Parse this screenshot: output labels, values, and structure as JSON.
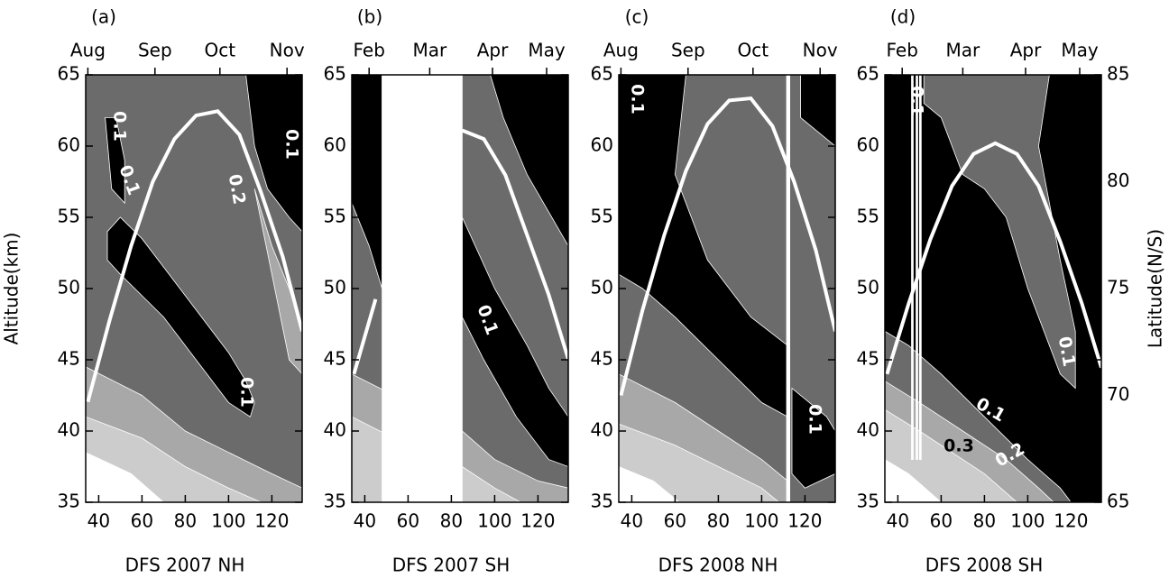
{
  "chart_data": [
    {
      "type": "contour",
      "panel_label": "(a)",
      "xlabel": "DFS 2007 NH",
      "ylabel": "Altitude(km)",
      "xlim": [
        34,
        134
      ],
      "xticks": [
        40,
        60,
        80,
        100,
        120
      ],
      "ylim": [
        35,
        65
      ],
      "yticks": [
        35,
        40,
        45,
        50,
        55,
        60,
        65
      ],
      "top_ticks": [
        {
          "value": 35,
          "label": "Aug"
        },
        {
          "value": 66,
          "label": "Sep"
        },
        {
          "value": 96,
          "label": "Oct"
        },
        {
          "value": 127,
          "label": "Nov"
        }
      ],
      "background": "#6b6b6b",
      "regions": [
        {
          "color": "#000000",
          "x": [
            108,
            112,
            118,
            128,
            134,
            134
          ],
          "y": [
            65,
            60,
            57,
            55,
            54,
            65
          ]
        },
        {
          "color": "#000000",
          "x": [
            43,
            46,
            52,
            52,
            48
          ],
          "y": [
            62,
            57,
            56,
            59,
            62
          ]
        },
        {
          "color": "#000000",
          "x": [
            44,
            50,
            60,
            70,
            80,
            90,
            100,
            108,
            112,
            110,
            100,
            90,
            80,
            70,
            60,
            50,
            44
          ],
          "y": [
            54,
            55,
            53.5,
            51.5,
            49.5,
            47.5,
            45.5,
            43.5,
            42,
            41,
            42,
            44,
            46,
            48,
            49.5,
            51,
            52
          ]
        },
        {
          "color": "#a8a8a8",
          "x": [
            112,
            120,
            128,
            134,
            134,
            128,
            120
          ],
          "y": [
            57,
            53,
            50,
            47,
            44,
            45,
            51
          ]
        },
        {
          "color": "#a8a8a8",
          "x": [
            34,
            60,
            80,
            100,
            120,
            134,
            134,
            34
          ],
          "y": [
            44.5,
            42.5,
            40,
            38.5,
            37,
            36,
            35,
            35
          ]
        },
        {
          "color": "#cccccc",
          "x": [
            34,
            60,
            80,
            100,
            115,
            34
          ],
          "y": [
            41,
            39.5,
            37.5,
            36,
            35,
            35
          ]
        },
        {
          "color": "#ffffff",
          "x": [
            34,
            55,
            70,
            34
          ],
          "y": [
            38.5,
            37,
            35,
            35
          ]
        }
      ],
      "y2lim": [
        65,
        85
      ],
      "line": {
        "color": "#ffffff",
        "x": [
          35,
          45,
          55,
          65,
          75,
          85,
          95,
          105,
          115,
          125,
          134
        ],
        "values": [
          69.7,
          73.5,
          77,
          80,
          82,
          83.1,
          83.3,
          82.2,
          79.5,
          76.5,
          73
        ]
      },
      "annotations": [
        {
          "text": "0.1",
          "color": "#ffffff"
        },
        {
          "text": "0.1",
          "color": "#ffffff"
        },
        {
          "text": "0.2",
          "color": "#ffffff"
        },
        {
          "text": "0.1",
          "color": "#ffffff"
        },
        {
          "text": "0.1",
          "color": "#ffffff"
        }
      ]
    },
    {
      "type": "contour",
      "panel_label": "(b)",
      "xlabel": "DFS 2007 SH",
      "xlim": [
        34,
        134
      ],
      "xticks": [
        40,
        60,
        80,
        100,
        120
      ],
      "ylim": [
        35,
        65
      ],
      "yticks": [
        35,
        40,
        45,
        50,
        55,
        60,
        65
      ],
      "top_ticks": [
        {
          "value": 42,
          "label": "Feb"
        },
        {
          "value": 70,
          "label": "Mar"
        },
        {
          "value": 99,
          "label": "Apr"
        },
        {
          "value": 124,
          "label": "May"
        }
      ],
      "background": "#6b6b6b",
      "regions": [
        {
          "color": "#000000",
          "x": [
            34,
            48,
            48,
            42,
            34
          ],
          "y": [
            65,
            65,
            50,
            53,
            56
          ]
        },
        {
          "color": "#000000",
          "x": [
            98,
            134,
            134,
            115,
            104
          ],
          "y": [
            65,
            65,
            53,
            58,
            62
          ]
        },
        {
          "color": "#000000",
          "x": [
            85,
            100,
            115,
            125,
            134,
            134,
            125,
            110,
            95,
            85
          ],
          "y": [
            55,
            50,
            46,
            43,
            41,
            37.5,
            38,
            41,
            45,
            48
          ]
        },
        {
          "color": "#a8a8a8",
          "x": [
            34,
            60,
            85,
            100,
            120,
            134,
            134,
            34
          ],
          "y": [
            44,
            42,
            40,
            38,
            36.5,
            36,
            35,
            35
          ]
        },
        {
          "color": "#cccccc",
          "x": [
            34,
            60,
            85,
            100,
            112,
            34
          ],
          "y": [
            41,
            39,
            37.5,
            36,
            35,
            35
          ]
        },
        {
          "color": "#ffffff",
          "x": [
            48,
            85,
            85,
            48
          ],
          "y": [
            65,
            65,
            35,
            35
          ]
        }
      ],
      "y2lim": [
        65,
        85
      ],
      "line": {
        "color": "#ffffff",
        "x": [
          35,
          45,
          55,
          65,
          75,
          85,
          95,
          105,
          115,
          125,
          134
        ],
        "values": [
          71,
          74.5,
          null,
          null,
          null,
          82.4,
          82,
          80.3,
          77.5,
          74.7,
          71.7
        ]
      },
      "annotations": [
        {
          "text": "0.1",
          "color": "#ffffff"
        }
      ]
    },
    {
      "type": "contour",
      "panel_label": "(c)",
      "xlabel": "DFS 2008 NH",
      "xlim": [
        34,
        134
      ],
      "xticks": [
        40,
        60,
        80,
        100,
        120
      ],
      "ylim": [
        35,
        65
      ],
      "yticks": [
        35,
        40,
        45,
        50,
        55,
        60,
        65
      ],
      "top_ticks": [
        {
          "value": 35,
          "label": "Aug"
        },
        {
          "value": 66,
          "label": "Sep"
        },
        {
          "value": 96,
          "label": "Oct"
        },
        {
          "value": 127,
          "label": "Nov"
        }
      ],
      "background": "#6b6b6b",
      "regions": [
        {
          "color": "#000000",
          "x": [
            34,
            65,
            60,
            75,
            95,
            112,
            112,
            100,
            80,
            60,
            45,
            34
          ],
          "y": [
            65,
            65,
            58,
            52,
            48,
            46,
            41,
            42,
            45,
            48,
            50,
            51
          ]
        },
        {
          "color": "#000000",
          "x": [
            118,
            134,
            134,
            126,
            118
          ],
          "y": [
            65,
            65,
            60,
            61,
            62
          ]
        },
        {
          "color": "#000000",
          "x": [
            114,
            130,
            134,
            134,
            120,
            114
          ],
          "y": [
            43,
            41,
            40,
            37,
            36,
            37
          ]
        },
        {
          "color": "#a8a8a8",
          "x": [
            34,
            60,
            80,
            100,
            112,
            112,
            34
          ],
          "y": [
            44,
            42,
            40,
            38,
            36.5,
            35,
            35
          ]
        },
        {
          "color": "#cccccc",
          "x": [
            34,
            60,
            80,
            100,
            108,
            34
          ],
          "y": [
            40.5,
            39,
            37.5,
            36,
            35,
            35
          ]
        },
        {
          "color": "#ffffff",
          "x": [
            34,
            50,
            62,
            34
          ],
          "y": [
            37.5,
            36.5,
            35,
            35
          ]
        },
        {
          "color": "#ffffff",
          "x": [
            111.5,
            113,
            113,
            111.5
          ],
          "y": [
            65,
            65,
            35,
            35
          ]
        }
      ],
      "y2lim": [
        65,
        85
      ],
      "line": {
        "color": "#ffffff",
        "x": [
          35,
          45,
          55,
          65,
          75,
          85,
          95,
          105,
          115,
          125,
          134
        ],
        "values": [
          70,
          74,
          77.5,
          80.5,
          82.7,
          83.8,
          83.9,
          82.6,
          80,
          76.8,
          73
        ]
      },
      "annotations": [
        {
          "text": "0.1",
          "color": "#ffffff"
        },
        {
          "text": "0.1",
          "color": "#ffffff"
        }
      ]
    },
    {
      "type": "contour",
      "panel_label": "(d)",
      "xlabel": "DFS 2008 SH",
      "y2label": "Latitude(N/S)",
      "xlim": [
        34,
        134
      ],
      "xticks": [
        40,
        60,
        80,
        100,
        120
      ],
      "ylim": [
        35,
        65
      ],
      "yticks": [
        35,
        40,
        45,
        50,
        55,
        60,
        65
      ],
      "top_ticks": [
        {
          "value": 42,
          "label": "Feb"
        },
        {
          "value": 70,
          "label": "Mar"
        },
        {
          "value": 99,
          "label": "Apr"
        },
        {
          "value": 124,
          "label": "May"
        }
      ],
      "background": "#000000",
      "regions": [
        {
          "color": "#6b6b6b",
          "x": [
            52,
            110,
            105,
            115,
            122,
            122,
            115,
            100,
            90,
            80,
            70,
            60,
            52
          ],
          "y": [
            65,
            65,
            60,
            52,
            47,
            43,
            44,
            50,
            55,
            57,
            58,
            62,
            63
          ]
        },
        {
          "color": "#6b6b6b",
          "x": [
            34,
            45,
            60,
            80,
            100,
            115,
            120,
            34
          ],
          "y": [
            47,
            46,
            44,
            41,
            38,
            36,
            35,
            35
          ]
        },
        {
          "color": "#a8a8a8",
          "x": [
            34,
            50,
            70,
            90,
            105,
            112,
            34
          ],
          "y": [
            43.5,
            42,
            40,
            38,
            36,
            35,
            35
          ]
        },
        {
          "color": "#cccccc",
          "x": [
            34,
            50,
            65,
            80,
            95,
            34
          ],
          "y": [
            41.5,
            40,
            38.5,
            37,
            35,
            35
          ]
        },
        {
          "color": "#ffffff",
          "x": [
            34,
            45,
            60,
            34
          ],
          "y": [
            38,
            37,
            35,
            35
          ]
        },
        {
          "color": "#ffffff",
          "x": [
            46.3,
            47.1,
            47.1,
            46.3
          ],
          "y": [
            65,
            65,
            38,
            38
          ]
        },
        {
          "color": "#ffffff",
          "x": [
            48.4,
            49.2,
            49.2,
            48.4
          ],
          "y": [
            65,
            65,
            38,
            38
          ]
        },
        {
          "color": "#ffffff",
          "x": [
            50,
            50.8,
            50.8,
            50
          ],
          "y": [
            65,
            65,
            38,
            38
          ]
        }
      ],
      "y2lim": [
        65,
        85
      ],
      "y2ticks": [
        65,
        70,
        75,
        80,
        85
      ],
      "line": {
        "color": "#ffffff",
        "x": [
          35,
          45,
          55,
          65,
          75,
          85,
          95,
          105,
          115,
          125,
          134
        ],
        "values": [
          71,
          74.3,
          77.3,
          79.8,
          81.3,
          81.8,
          81.3,
          79.8,
          77.2,
          74.3,
          71.3
        ]
      },
      "annotations": [
        {
          "text": "0.1",
          "color": "#ffffff"
        },
        {
          "text": "0.1",
          "color": "#ffffff"
        },
        {
          "text": "0.1",
          "color": "#ffffff"
        },
        {
          "text": "0.2",
          "color": "#ffffff"
        },
        {
          "text": "0.3",
          "color": "#000000"
        }
      ]
    }
  ]
}
